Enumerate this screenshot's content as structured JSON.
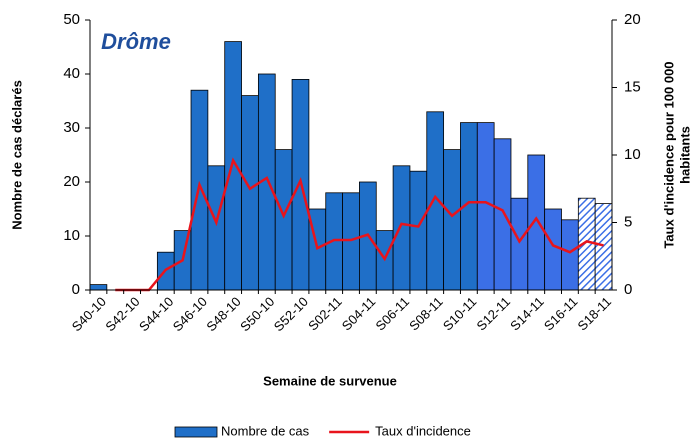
{
  "chart_data": {
    "type": "bar_line",
    "title": "Drôme",
    "x_label": "Semaine de survenue",
    "y_label": "Nombre de cas déclarés",
    "y2_label_lines": [
      "Taux d'incidence pour 100 000",
      "habitants"
    ],
    "categories": [
      "S40-10",
      null,
      "S42-10",
      null,
      "S44-10",
      null,
      "S46-10",
      null,
      "S48-10",
      null,
      "S50-10",
      null,
      "S52-10",
      null,
      "S02-11",
      null,
      "S04-11",
      null,
      "S06-11",
      null,
      "S08-11",
      null,
      "S10-11",
      null,
      "S12-11",
      null,
      "S14-11",
      null,
      "S16-11",
      null,
      "S18-11"
    ],
    "series": [
      {
        "name": "Nombre de cas",
        "kind": "bar",
        "color": "#1f6fc8",
        "values": [
          1,
          0,
          0,
          0,
          7,
          11,
          37,
          23,
          46,
          36,
          40,
          26,
          39,
          15,
          18,
          18,
          20,
          11,
          23,
          22,
          33,
          26,
          31,
          31,
          28,
          17,
          25,
          15,
          13,
          17,
          16
        ],
        "point_colors": [
          "#1f6fc8",
          "#1f6fc8",
          "#1f6fc8",
          "#1f6fc8",
          "#1f6fc8",
          "#1f6fc8",
          "#1f6fc8",
          "#1f6fc8",
          "#1f6fc8",
          "#1f6fc8",
          "#1f6fc8",
          "#1f6fc8",
          "#1f6fc8",
          "#1f6fc8",
          "#1f6fc8",
          "#1f6fc8",
          "#1f6fc8",
          "#1f6fc8",
          "#1f6fc8",
          "#1f6fc8",
          "#1f6fc8",
          "#1f6fc8",
          "#1f6fc8",
          "#3b6fe6",
          "#3b6fe6",
          "#3b6fe6",
          "#3b6fe6",
          "#3b6fe6",
          "#3b6fe6",
          "#3b6fe6",
          "#3b6fe6"
        ],
        "point_hatch": [
          false,
          false,
          false,
          false,
          false,
          false,
          false,
          false,
          false,
          false,
          false,
          false,
          false,
          false,
          false,
          false,
          false,
          false,
          false,
          false,
          false,
          false,
          false,
          false,
          false,
          false,
          false,
          false,
          false,
          true,
          true
        ]
      },
      {
        "name": "Taux d'incidence",
        "kind": "line",
        "axis": "y2",
        "color": "#e8141c",
        "values": [
          null,
          0,
          0,
          0,
          1.5,
          2.2,
          7.8,
          5,
          9.6,
          7.5,
          8.3,
          5.5,
          8.1,
          3.1,
          3.7,
          3.7,
          4.1,
          2.3,
          4.9,
          4.7,
          6.9,
          5.5,
          6.5,
          6.5,
          5.9,
          3.6,
          5.3,
          3.3,
          2.8,
          3.6,
          3.3
        ]
      }
    ],
    "ylim": [
      0,
      50
    ],
    "yticks": [
      0,
      10,
      20,
      30,
      40,
      50
    ],
    "y2lim": [
      0,
      20
    ],
    "y2ticks": [
      0,
      5,
      10,
      15,
      20
    ],
    "grid": false
  }
}
